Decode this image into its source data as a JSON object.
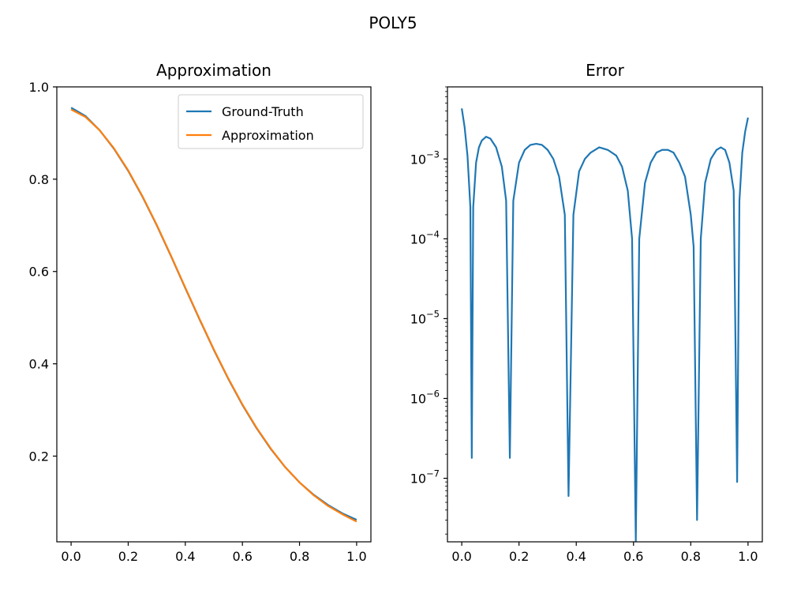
{
  "figure": {
    "suptitle": "POLY5"
  },
  "chart_data": [
    {
      "type": "line",
      "title": "Approximation",
      "xlabel": "",
      "ylabel": "",
      "xlim": [
        -0.05,
        1.05
      ],
      "ylim": [
        0.0143,
        1.0
      ],
      "xticks": [
        0.0,
        0.2,
        0.4,
        0.6,
        0.8,
        1.0
      ],
      "xtick_labels": [
        "0.0",
        "0.2",
        "0.4",
        "0.6",
        "0.8",
        "1.0"
      ],
      "yticks": [
        0.2,
        0.4,
        0.6,
        0.8,
        1.0
      ],
      "ytick_labels": [
        "0.2",
        "0.4",
        "0.6",
        "0.8",
        "1.0"
      ],
      "grid": false,
      "legend": {
        "position": "top-right",
        "entries": [
          "Ground-Truth",
          "Approximation"
        ]
      },
      "x": [
        0.0,
        0.05,
        0.1,
        0.15,
        0.2,
        0.25,
        0.3,
        0.35,
        0.4,
        0.45,
        0.5,
        0.55,
        0.6,
        0.65,
        0.7,
        0.75,
        0.8,
        0.85,
        0.9,
        0.95,
        1.0
      ],
      "series": [
        {
          "name": "Ground-Truth",
          "color": "#1f77b4",
          "values": [
            0.955,
            0.937,
            0.906,
            0.866,
            0.818,
            0.762,
            0.7,
            0.633,
            0.564,
            0.496,
            0.43,
            0.368,
            0.311,
            0.26,
            0.215,
            0.176,
            0.143,
            0.116,
            0.094,
            0.076,
            0.062
          ]
        },
        {
          "name": "Approximation",
          "color": "#ff7f0e",
          "values": [
            0.951,
            0.935,
            0.906,
            0.867,
            0.819,
            0.763,
            0.701,
            0.634,
            0.565,
            0.497,
            0.431,
            0.369,
            0.312,
            0.261,
            0.216,
            0.176,
            0.143,
            0.115,
            0.092,
            0.074,
            0.058
          ]
        }
      ]
    },
    {
      "type": "line",
      "title": "Error",
      "xlabel": "",
      "ylabel": "",
      "yscale": "log",
      "xlim": [
        -0.05,
        1.05
      ],
      "ylim": [
        1.6e-08,
        0.008
      ],
      "xticks": [
        0.0,
        0.2,
        0.4,
        0.6,
        0.8,
        1.0
      ],
      "xtick_labels": [
        "0.0",
        "0.2",
        "0.4",
        "0.6",
        "0.8",
        "1.0"
      ],
      "yticks": [
        1e-07,
        1e-06,
        1e-05,
        0.0001,
        0.001
      ],
      "ytick_labels": [
        {
          "base": "10",
          "exp": "−7"
        },
        {
          "base": "10",
          "exp": "−6"
        },
        {
          "base": "10",
          "exp": "−5"
        },
        {
          "base": "10",
          "exp": "−4"
        },
        {
          "base": "10",
          "exp": "−3"
        }
      ],
      "grid": false,
      "series": [
        {
          "name": "",
          "color": "#1f77b4",
          "x": [
            0.0,
            0.01,
            0.02,
            0.03,
            0.035,
            0.04,
            0.05,
            0.06,
            0.07,
            0.085,
            0.1,
            0.12,
            0.14,
            0.155,
            0.168,
            0.18,
            0.2,
            0.22,
            0.24,
            0.26,
            0.28,
            0.3,
            0.32,
            0.34,
            0.36,
            0.373,
            0.39,
            0.41,
            0.43,
            0.45,
            0.48,
            0.51,
            0.54,
            0.56,
            0.58,
            0.595,
            0.608,
            0.62,
            0.64,
            0.66,
            0.68,
            0.7,
            0.72,
            0.74,
            0.76,
            0.78,
            0.8,
            0.81,
            0.822,
            0.835,
            0.85,
            0.87,
            0.89,
            0.905,
            0.92,
            0.935,
            0.95,
            0.962,
            0.97,
            0.98,
            0.99,
            1.0
          ],
          "values": [
            0.0043,
            0.0025,
            0.0011,
            0.00025,
            1.8e-07,
            0.00025,
            0.0009,
            0.0014,
            0.0017,
            0.0019,
            0.0018,
            0.0014,
            0.0008,
            0.0003,
            1.8e-07,
            0.0003,
            0.0009,
            0.0013,
            0.0015,
            0.00155,
            0.0015,
            0.0013,
            0.001,
            0.0006,
            0.0002,
            6e-08,
            0.0002,
            0.0007,
            0.001,
            0.0012,
            0.0014,
            0.0013,
            0.0011,
            0.0008,
            0.0004,
            0.0001,
            1.6e-08,
            0.0001,
            0.0005,
            0.0009,
            0.0012,
            0.0013,
            0.0013,
            0.0012,
            0.0009,
            0.0006,
            0.0002,
            8e-05,
            3e-08,
            0.0001,
            0.0005,
            0.001,
            0.0013,
            0.0014,
            0.0013,
            0.0009,
            0.0004,
            9e-08,
            0.0003,
            0.0012,
            0.0022,
            0.0033
          ]
        }
      ]
    }
  ]
}
